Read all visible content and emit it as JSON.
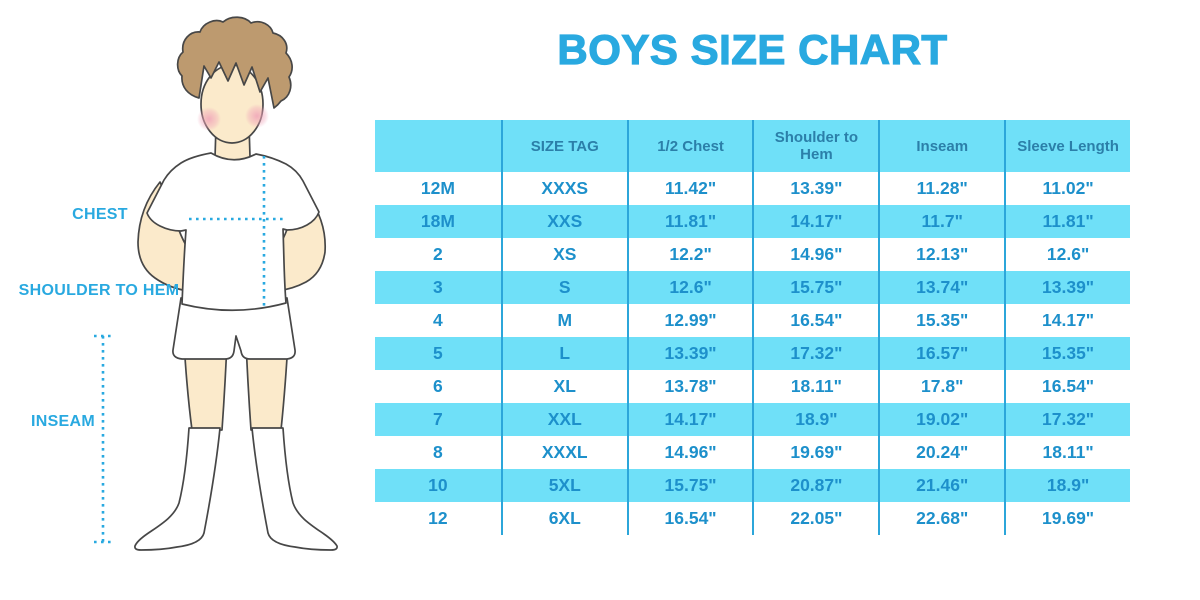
{
  "title": "BOYS SIZE CHART",
  "figure": {
    "description": "cartoon boy in white t-shirt, shorts and knee socks with measurement guides",
    "labels": {
      "chest": "CHEST",
      "shoulder_to_hem": "SHOULDER TO HEM",
      "inseam": "INSEAM"
    }
  },
  "colors": {
    "accent_blue": "#29a9e0",
    "table_fill": "#6fe0f8",
    "header_text": "#2b7fa9",
    "cell_text": "#1d90cb",
    "divider": "#2ca6da",
    "hair": "#bd9a6f",
    "skin": "#fbeacb",
    "blush": "#f0a3b8"
  },
  "chart_data": {
    "type": "table",
    "columns": [
      "",
      "SIZE TAG",
      "1/2 Chest",
      "Shoulder to Hem",
      "Inseam",
      "Sleeve Length"
    ],
    "rows": [
      [
        "12M",
        "XXXS",
        "11.42\"",
        "13.39\"",
        "11.28\"",
        "11.02\""
      ],
      [
        "18M",
        "XXS",
        "11.81\"",
        "14.17\"",
        "11.7\"",
        "11.81\""
      ],
      [
        "2",
        "XS",
        "12.2\"",
        "14.96\"",
        "12.13\"",
        "12.6\""
      ],
      [
        "3",
        "S",
        "12.6\"",
        "15.75\"",
        "13.74\"",
        "13.39\""
      ],
      [
        "4",
        "M",
        "12.99\"",
        "16.54\"",
        "15.35\"",
        "14.17\""
      ],
      [
        "5",
        "L",
        "13.39\"",
        "17.32\"",
        "16.57\"",
        "15.35\""
      ],
      [
        "6",
        "XL",
        "13.78\"",
        "18.11\"",
        "17.8\"",
        "16.54\""
      ],
      [
        "7",
        "XXL",
        "14.17\"",
        "18.9\"",
        "19.02\"",
        "17.32\""
      ],
      [
        "8",
        "XXXL",
        "14.96\"",
        "19.69\"",
        "20.24\"",
        "18.11\""
      ],
      [
        "10",
        "5XL",
        "15.75\"",
        "20.87\"",
        "21.46\"",
        "18.9\""
      ],
      [
        "12",
        "6XL",
        "16.54\"",
        "22.05\"",
        "22.68\"",
        "19.69\""
      ]
    ]
  }
}
